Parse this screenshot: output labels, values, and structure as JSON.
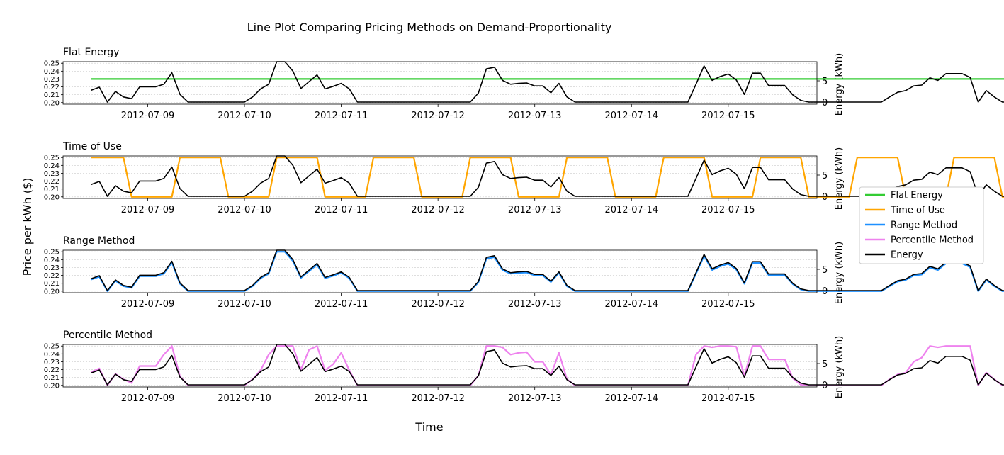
{
  "figure": {
    "title": "Line Plot Comparing Pricing Methods on Demand-Proportionality",
    "xlabel": "Time",
    "ylabel_left": "Price per kWh ($)",
    "ylabel_right": "Energy (kWh)"
  },
  "legend": {
    "placement": "center-right",
    "items": [
      {
        "label": "Flat Energy",
        "color": "#33cc33"
      },
      {
        "label": "Time of Use",
        "color": "#ffa500"
      },
      {
        "label": "Range Method",
        "color": "#1e90ff"
      },
      {
        "label": "Percentile Method",
        "color": "#ee82ee"
      },
      {
        "label": "Energy",
        "color": "#000000"
      }
    ]
  },
  "chart_data": {
    "type": "line",
    "time_axis": {
      "start": "2012-07-08 10:00",
      "step_hours": 2,
      "tick_labels": [
        "2012-07-09",
        "2012-07-10",
        "2012-07-11",
        "2012-07-12",
        "2012-07-13",
        "2012-07-14",
        "2012-07-15"
      ],
      "xlim": [
        "2012-07-08 03:00",
        "2012-07-15 22:00"
      ]
    },
    "price_ylim": [
      0.198,
      0.252
    ],
    "price_ticks": [
      "0.20",
      "0.21",
      "0.22",
      "0.23",
      "0.24",
      "0.25"
    ],
    "energy_ylim": [
      -0.5,
      9.5
    ],
    "energy_ticks": [
      "0",
      "5"
    ],
    "energy": [
      2.8,
      3.5,
      0,
      2.5,
      1.2,
      0.8,
      3.6,
      3.6,
      3.6,
      4.2,
      6.9,
      1.8,
      0,
      0,
      0,
      0,
      0,
      0,
      0,
      0,
      1.2,
      3.1,
      4.2,
      9.5,
      9.5,
      7.3,
      3.2,
      4.8,
      6.4,
      3.1,
      3.7,
      4.4,
      3.1,
      0,
      0,
      0,
      0,
      0,
      0,
      0,
      0,
      0,
      0,
      0,
      0,
      0,
      0,
      0,
      2.1,
      7.8,
      8.2,
      5.1,
      4.2,
      4.4,
      4.5,
      3.8,
      3.8,
      2.2,
      4.4,
      1.2,
      0,
      0,
      0,
      0,
      0,
      0,
      0,
      0,
      0,
      0,
      0,
      0,
      0,
      0,
      0,
      4.2,
      8.5,
      5.1,
      6.0,
      6.6,
      5.2,
      1.8,
      6.8,
      6.8,
      3.9,
      3.9,
      3.9,
      1.7,
      0.4,
      0,
      0,
      0,
      0,
      0,
      0,
      0,
      0,
      0,
      0,
      1.2,
      2.3,
      2.7,
      3.8,
      4.0,
      5.7,
      5.1,
      6.7,
      6.7,
      6.7,
      5.8,
      0,
      2.7,
      1.2,
      0,
      0,
      0,
      0,
      0,
      0,
      0,
      0,
      0,
      0,
      0,
      0,
      0,
      0,
      4.0,
      7.8,
      8.2,
      8.4,
      5.1,
      4.8,
      4.7,
      3.6,
      0,
      0,
      1.2,
      3.9,
      0,
      0,
      0,
      0,
      0,
      0,
      0,
      0,
      0,
      0,
      0,
      0,
      0,
      0,
      3.5,
      1.6,
      3.7,
      4.0,
      6.3,
      4.8,
      3.8,
      5.7,
      4.2,
      0.8,
      0,
      1.8,
      3.7,
      5.9,
      5.7,
      0.8,
      0,
      0,
      0,
      0,
      0,
      0,
      0,
      0,
      0,
      0,
      0,
      0,
      0,
      0,
      0,
      0
    ],
    "series": [
      {
        "name": "Flat Energy",
        "color": "#33cc33",
        "rule": "flat",
        "value": 0.23
      },
      {
        "name": "Time of Use",
        "color": "#ffa500",
        "rule": "tou",
        "peak": 0.25,
        "offpeak": 0.2,
        "peak_start_hour": 8,
        "peak_end_hour": 20
      },
      {
        "name": "Range Method",
        "color": "#1e90ff",
        "rule": "range",
        "min": 0.2,
        "max": 0.25
      },
      {
        "name": "Percentile Method",
        "color": "#ee82ee",
        "rule": "percentile",
        "min": 0.2,
        "max": 0.25
      }
    ],
    "subplots": [
      {
        "title": "Flat Energy",
        "series": "Flat Energy"
      },
      {
        "title": "Time of Use",
        "series": "Time of Use"
      },
      {
        "title": "Range Method",
        "series": "Range Method"
      },
      {
        "title": "Percentile Method",
        "series": "Percentile Method"
      }
    ],
    "grid": "horizontal-dotted"
  }
}
